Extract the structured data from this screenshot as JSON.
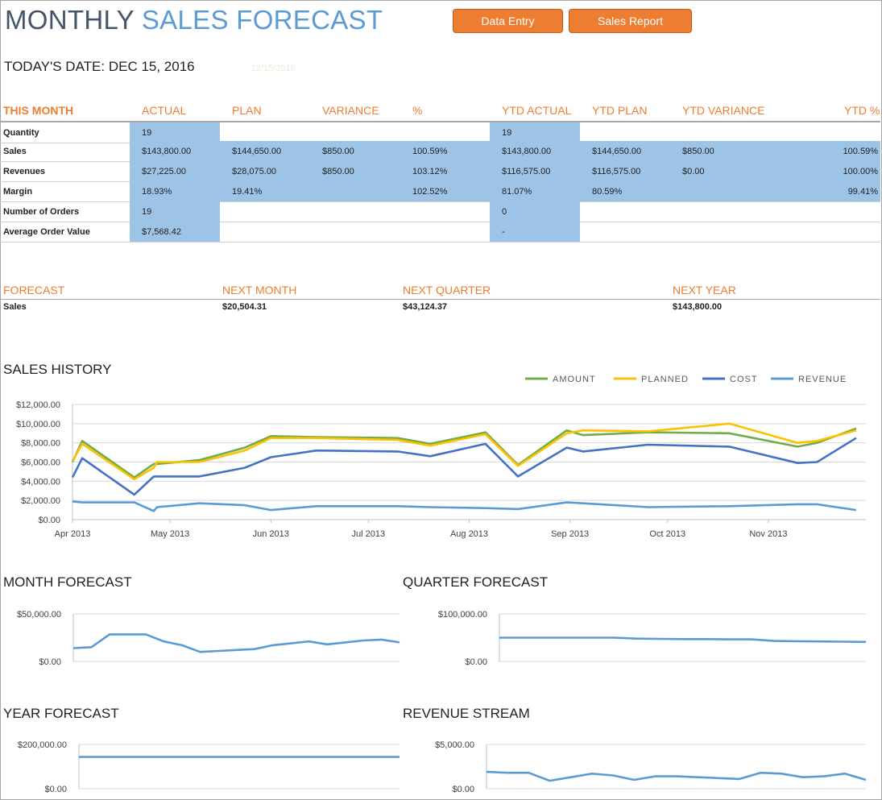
{
  "header": {
    "title_part1": "MONTHLY ",
    "title_part2": "SALES FORECAST",
    "buttons": {
      "data_entry": "Data Entry",
      "sales_report": "Sales Report"
    },
    "today_label": "TODAY'S DATE: DEC 15, 2016",
    "faint_note": "12/15/2016"
  },
  "colors": {
    "accent": "#ed7d31",
    "title_dark": "#44546a",
    "title_blue": "#5b9bd5",
    "cell_blue": "#9dc3e6",
    "amount": "#70ad47",
    "planned": "#ffc000",
    "cost": "#4472c4",
    "revenue": "#5b9bd5"
  },
  "month_table": {
    "headers": [
      "THIS MONTH",
      "ACTUAL",
      "PLAN",
      "VARIANCE",
      "%",
      "YTD ACTUAL",
      "YTD PLAN",
      "YTD VARIANCE",
      "YTD %"
    ],
    "rows": [
      {
        "label": "Quantity",
        "values": [
          "19",
          "",
          "",
          "",
          "19",
          "",
          "",
          ""
        ]
      },
      {
        "label": "Sales",
        "values": [
          "$143,800.00",
          "$144,650.00",
          "$850.00",
          "100.59%",
          "$143,800.00",
          "$144,650.00",
          "$850.00",
          "100.59%"
        ]
      },
      {
        "label": "Revenues",
        "values": [
          "$27,225.00",
          "$28,075.00",
          "$850.00",
          "103.12%",
          "$116,575.00",
          "$116,575.00",
          "$0.00",
          "100.00%"
        ]
      },
      {
        "label": "Margin",
        "values": [
          "18.93%",
          "19.41%",
          "",
          "102.52%",
          "81.07%",
          "80.59%",
          "",
          "99.41%"
        ]
      },
      {
        "label": "Number of Orders",
        "values": [
          "19",
          "",
          "",
          "",
          "0",
          "",
          "",
          ""
        ]
      },
      {
        "label": "Average Order Value",
        "values": [
          "$7,568.42",
          "",
          "",
          "",
          "-",
          "",
          "",
          ""
        ]
      }
    ]
  },
  "forecast": {
    "headers": [
      "FORECAST",
      "NEXT MONTH",
      "NEXT QUARTER",
      "NEXT YEAR"
    ],
    "row_label": "Sales",
    "values": [
      "$20,504.31",
      "$43,124.37",
      "$143,800.00"
    ]
  },
  "sections": {
    "sales_history": "SALES HISTORY",
    "month_forecast": "MONTH FORECAST",
    "quarter_forecast": "QUARTER FORECAST",
    "year_forecast": "YEAR FORECAST",
    "revenue_stream": "REVENUE STREAM"
  },
  "chart_data": [
    {
      "type": "line",
      "title": "SALES HISTORY",
      "xlabel": "",
      "ylabel": "",
      "x": [
        "2013-04-01",
        "2013-04-04",
        "2013-04-20",
        "2013-04-26",
        "2013-04-27",
        "2013-05-10",
        "2013-05-24",
        "2013-06-01",
        "2013-06-15",
        "2013-07-10",
        "2013-07-20",
        "2013-08-06",
        "2013-08-16",
        "2013-08-31",
        "2013-09-05",
        "2013-09-25",
        "2013-10-20",
        "2013-11-10",
        "2013-11-16",
        "2013-11-28"
      ],
      "x_tick_labels": [
        "Apr 2013",
        "May 2013",
        "Jun 2013",
        "Jul 2013",
        "Aug 2013",
        "Sep 2013",
        "Oct 2013",
        "Nov 2013"
      ],
      "ylim": [
        0,
        12000
      ],
      "y_tick_labels": [
        "$0.00",
        "$2,000.00",
        "$4,000.00",
        "$6,000.00",
        "$8,000.00",
        "$10,000.00",
        "$12,000.00"
      ],
      "legend_position": "top-right",
      "grid": true,
      "series": [
        {
          "name": "AMOUNT",
          "values": [
            6000,
            8200,
            4400,
            5800,
            5800,
            6200,
            7500,
            8700,
            8600,
            8500,
            7900,
            9100,
            5700,
            9300,
            8800,
            9100,
            9000,
            7600,
            8000,
            9500
          ]
        },
        {
          "name": "PLANNED",
          "values": [
            6100,
            7900,
            4200,
            5400,
            6000,
            6000,
            7200,
            8500,
            8500,
            8300,
            7700,
            8900,
            5600,
            9000,
            9300,
            9200,
            10000,
            8000,
            8200,
            9300
          ]
        },
        {
          "name": "COST",
          "values": [
            4400,
            6400,
            2600,
            4500,
            4500,
            4500,
            5400,
            6500,
            7200,
            7100,
            6600,
            7900,
            4500,
            7500,
            7100,
            7800,
            7600,
            5900,
            6000,
            8500
          ]
        },
        {
          "name": "REVENUE",
          "values": [
            1900,
            1800,
            1800,
            900,
            1300,
            1700,
            1500,
            1000,
            1400,
            1400,
            1300,
            1200,
            1100,
            1800,
            1700,
            1300,
            1400,
            1600,
            1600,
            1000
          ]
        }
      ]
    },
    {
      "type": "line",
      "title": "MONTH FORECAST",
      "ylim": [
        0,
        50000
      ],
      "y_tick_labels": [
        "$0.00",
        "$50,000.00"
      ],
      "values": [
        14000,
        15000,
        28500,
        28500,
        28500,
        21000,
        17000,
        10000,
        11000,
        12000,
        13000,
        17000,
        19000,
        21000,
        18000,
        20000,
        22000,
        23000,
        20000
      ]
    },
    {
      "type": "line",
      "title": "QUARTER FORECAST",
      "ylim": [
        0,
        100000
      ],
      "y_tick_labels": [
        "$0.00",
        "$100,000.00"
      ],
      "values": [
        50000,
        50000,
        50000,
        50000,
        50000,
        50000,
        48000,
        47500,
        47000,
        47000,
        46500,
        46500,
        43000,
        42500,
        42000,
        41500,
        41000
      ]
    },
    {
      "type": "line",
      "title": "YEAR FORECAST",
      "ylim": [
        0,
        200000
      ],
      "y_tick_labels": [
        "$0.00",
        "$200,000.00"
      ],
      "values": [
        143800,
        143800
      ]
    },
    {
      "type": "line",
      "title": "REVENUE STREAM",
      "ylim": [
        0,
        5000
      ],
      "y_tick_labels": [
        "$0.00",
        "$5,000.00"
      ],
      "values": [
        1900,
        1800,
        1800,
        900,
        1300,
        1700,
        1500,
        1000,
        1400,
        1400,
        1300,
        1200,
        1100,
        1800,
        1700,
        1300,
        1400,
        1700,
        1000
      ]
    }
  ]
}
